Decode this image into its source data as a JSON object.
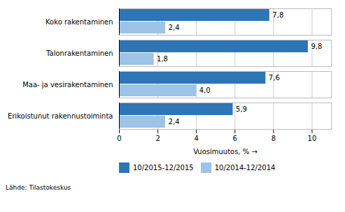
{
  "chart_data": {
    "type": "bar",
    "orientation": "horizontal",
    "categories": [
      "Erikoistunut rakennustoiminta",
      "Maa- ja vesirakentaminen",
      "Talonrakentaminen",
      "Koko rakentaminen"
    ],
    "series": [
      {
        "name": "10/2015-12/2015",
        "color": "#2E75B6",
        "values": [
          5.9,
          7.6,
          9.8,
          7.8
        ],
        "value_labels": [
          "5,9",
          "7,6",
          "9,8",
          "7,8"
        ]
      },
      {
        "name": "10/2014-12/2014",
        "color": "#9DC3E6",
        "values": [
          2.4,
          4.0,
          1.8,
          2.4
        ],
        "value_labels": [
          "2,4",
          "4,0",
          "1,8",
          "2,4"
        ]
      }
    ],
    "xlabel": "Vuosimuutos, %",
    "xlim": [
      0,
      11
    ],
    "xticks": [
      0,
      2,
      4,
      6,
      8,
      10
    ],
    "grid": true,
    "data_labels": true,
    "legend": "lower right",
    "annotations": [
      "Lähde: Tilastokeskus"
    ]
  }
}
